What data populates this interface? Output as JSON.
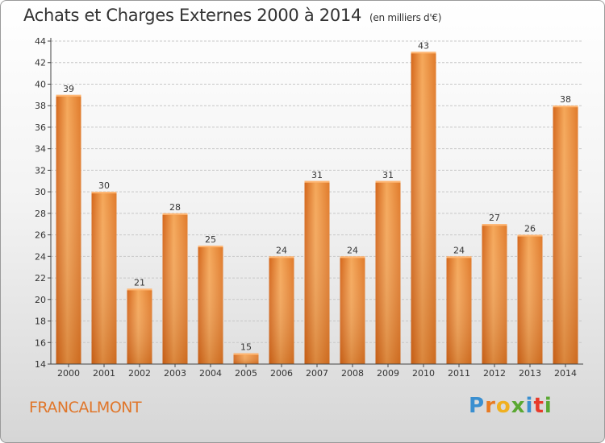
{
  "title": "Achats et Charges Externes 2000 à 2014",
  "unit_note": "(en milliers d'€)",
  "commune": "FRANCALMONT",
  "logo": {
    "letters": [
      "P",
      "r",
      "o",
      "x",
      "i",
      "t",
      "i"
    ],
    "colors": [
      "#3a8fd0",
      "#e87a22",
      "#f0b020",
      "#5aa832",
      "#3a8fd0",
      "#e83a2a",
      "#5aa832"
    ]
  },
  "colors": {
    "bar": "#e87d2e",
    "bar_light": "#f5a85a",
    "accent": "#e0762a"
  },
  "chart_data": {
    "type": "bar",
    "title": "Achats et Charges Externes 2000 à 2014",
    "subtitle": "(en milliers d'€)",
    "categories": [
      "2000",
      "2001",
      "2002",
      "2003",
      "2004",
      "2005",
      "2006",
      "2007",
      "2008",
      "2009",
      "2010",
      "2011",
      "2012",
      "2013",
      "2014"
    ],
    "values": [
      39,
      30,
      21,
      28,
      25,
      15,
      24,
      31,
      24,
      31,
      43,
      24,
      27,
      26,
      38
    ],
    "ylim": [
      14,
      44
    ],
    "yticks": [
      14,
      16,
      18,
      20,
      22,
      24,
      26,
      28,
      30,
      32,
      34,
      36,
      38,
      40,
      42,
      44
    ],
    "grid": true,
    "xlabel": "",
    "ylabel": ""
  }
}
